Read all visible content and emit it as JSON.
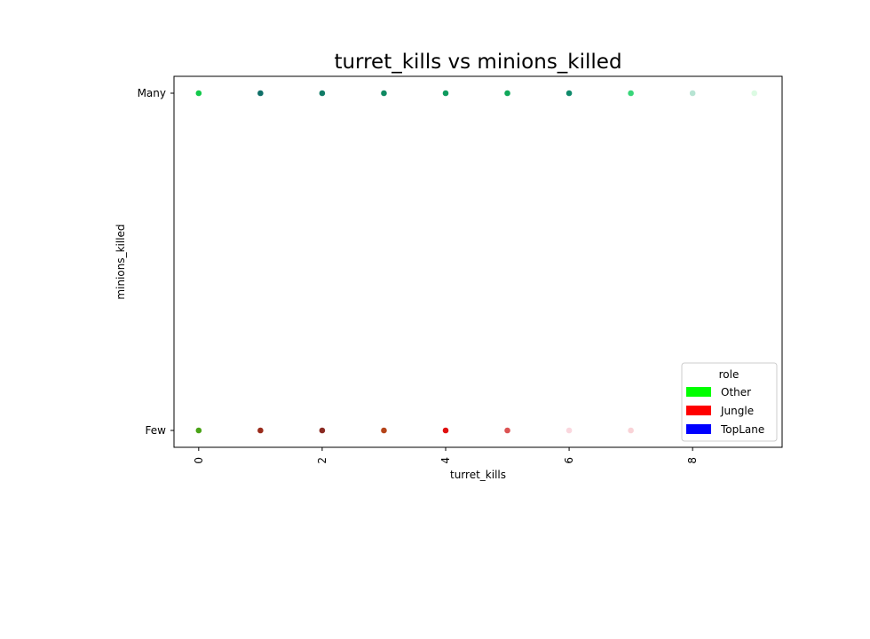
{
  "chart_data": {
    "type": "scatter",
    "title": "turret_kills vs minions_killed",
    "xlabel": "turret_kills",
    "ylabel": "minions_killed",
    "xlim": [
      -0.4,
      9.45
    ],
    "x_ticks": [
      0,
      2,
      4,
      6,
      8
    ],
    "y_categories": [
      "Few",
      "Many"
    ],
    "grid": false,
    "legend": {
      "title": "role",
      "placement": "lower-right",
      "entries": [
        {
          "name": "Other",
          "color": "#00ff00"
        },
        {
          "name": "Jungle",
          "color": "#ff0000"
        },
        {
          "name": "TopLane",
          "color": "#0000ff"
        }
      ]
    },
    "points": [
      {
        "x": 0,
        "y": "Many",
        "color": "#13c94b",
        "opacity": 1.0
      },
      {
        "x": 1,
        "y": "Many",
        "color": "#0f6f68",
        "opacity": 1.0
      },
      {
        "x": 2,
        "y": "Many",
        "color": "#0f7b66",
        "opacity": 1.0
      },
      {
        "x": 3,
        "y": "Many",
        "color": "#0f8a62",
        "opacity": 1.0
      },
      {
        "x": 4,
        "y": "Many",
        "color": "#0f9a5e",
        "opacity": 1.0
      },
      {
        "x": 5,
        "y": "Many",
        "color": "#10a85a",
        "opacity": 1.0
      },
      {
        "x": 6,
        "y": "Many",
        "color": "#0f8a6b",
        "opacity": 1.0
      },
      {
        "x": 7,
        "y": "Many",
        "color": "#22d16a",
        "opacity": 0.9
      },
      {
        "x": 8,
        "y": "Many",
        "color": "#6fc9a8",
        "opacity": 0.5
      },
      {
        "x": 9,
        "y": "Many",
        "color": "#a8f5b8",
        "opacity": 0.4
      },
      {
        "x": 0,
        "y": "Few",
        "color": "#4aa317",
        "opacity": 1.0
      },
      {
        "x": 1,
        "y": "Few",
        "color": "#9a2c1c",
        "opacity": 1.0
      },
      {
        "x": 2,
        "y": "Few",
        "color": "#8a2a22",
        "opacity": 1.0
      },
      {
        "x": 3,
        "y": "Few",
        "color": "#b5451a",
        "opacity": 1.0
      },
      {
        "x": 4,
        "y": "Few",
        "color": "#e01010",
        "opacity": 1.0
      },
      {
        "x": 5,
        "y": "Few",
        "color": "#d84040",
        "opacity": 0.9
      },
      {
        "x": 6,
        "y": "Few",
        "color": "#f5b0bd",
        "opacity": 0.5
      },
      {
        "x": 7,
        "y": "Few",
        "color": "#f3a8b0",
        "opacity": 0.5
      }
    ]
  }
}
